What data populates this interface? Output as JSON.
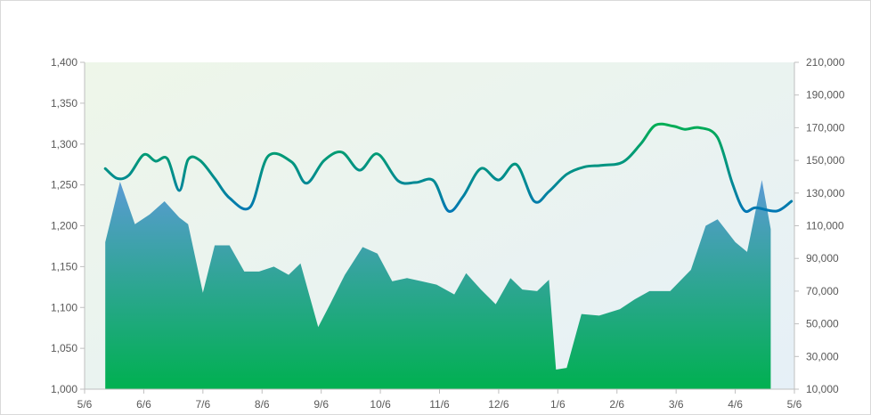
{
  "chart_data": {
    "type": "line",
    "title": "",
    "xlabel": "",
    "ylabel": "",
    "x_ticks": [
      "5/6",
      "6/6",
      "7/6",
      "8/6",
      "9/6",
      "10/6",
      "11/6",
      "12/6",
      "1/6",
      "2/6",
      "3/6",
      "4/6",
      "5/6"
    ],
    "y_left": {
      "min": 1000,
      "max": 1400,
      "ticks": [
        "1,000",
        "1,050",
        "1,100",
        "1,150",
        "1,200",
        "1,250",
        "1,300",
        "1,350",
        "1,400"
      ]
    },
    "y_right": {
      "min": 10000,
      "max": 210000,
      "ticks": [
        "10,000",
        "30,000",
        "50,000",
        "70,000",
        "90,000",
        "110,000",
        "130,000",
        "150,000",
        "170,000",
        "190,000",
        "210,000"
      ]
    },
    "grid": false,
    "legend": "none",
    "background_gradient": [
      "#eef6e9",
      "#e6f0f7"
    ],
    "area_gradient": [
      "#5b9bd5",
      "#00b050"
    ],
    "line_gradient": [
      "#00b050",
      "#0070c0"
    ],
    "series": [
      {
        "type": "line",
        "axis": "left",
        "x": [
          0.35,
          0.55,
          0.75,
          1.0,
          1.2,
          1.4,
          1.6,
          1.75,
          1.95,
          2.2,
          2.45,
          2.8,
          3.1,
          3.5,
          3.75,
          4.05,
          4.35,
          4.65,
          4.95,
          5.3,
          5.6,
          5.9,
          6.15,
          6.4,
          6.7,
          7.0,
          7.3,
          7.6,
          7.85,
          8.15,
          8.45,
          8.75,
          9.1,
          9.4,
          9.65,
          9.95,
          10.15,
          10.4,
          10.7,
          10.95,
          11.15,
          11.35,
          11.7,
          11.95
        ],
        "y": [
          1270,
          1258,
          1262,
          1287,
          1279,
          1282,
          1243,
          1281,
          1280,
          1258,
          1234,
          1223,
          1285,
          1278,
          1252,
          1280,
          1290,
          1268,
          1288,
          1255,
          1253,
          1255,
          1218,
          1236,
          1270,
          1256,
          1275,
          1230,
          1242,
          1263,
          1272,
          1274,
          1278,
          1300,
          1323,
          1322,
          1318,
          1320,
          1308,
          1252,
          1219,
          1222,
          1218,
          1230
        ]
      },
      {
        "type": "area",
        "axis": "right",
        "x": [
          0.35,
          0.6,
          0.85,
          1.1,
          1.35,
          1.6,
          1.75,
          2.0,
          2.2,
          2.45,
          2.7,
          2.95,
          3.2,
          3.45,
          3.65,
          3.95,
          4.15,
          4.4,
          4.7,
          4.95,
          5.2,
          5.45,
          5.7,
          5.95,
          6.25,
          6.45,
          6.7,
          6.95,
          7.2,
          7.4,
          7.65,
          7.85,
          7.97,
          8.15,
          8.4,
          8.7,
          9.05,
          9.3,
          9.55,
          9.9,
          10.25,
          10.5,
          10.7,
          11.0,
          11.2,
          11.45,
          11.6
        ],
        "y": [
          100000,
          137000,
          111000,
          117000,
          125000,
          115000,
          111000,
          69000,
          98000,
          98000,
          82000,
          82000,
          85000,
          80000,
          87000,
          48000,
          62000,
          80000,
          97000,
          93000,
          76000,
          78000,
          76000,
          74000,
          68000,
          81000,
          71000,
          62000,
          78000,
          71000,
          70000,
          77000,
          22000,
          23000,
          56000,
          55000,
          59000,
          65000,
          70000,
          70000,
          83000,
          110000,
          114000,
          100000,
          94000,
          138000,
          108000
        ]
      }
    ]
  }
}
